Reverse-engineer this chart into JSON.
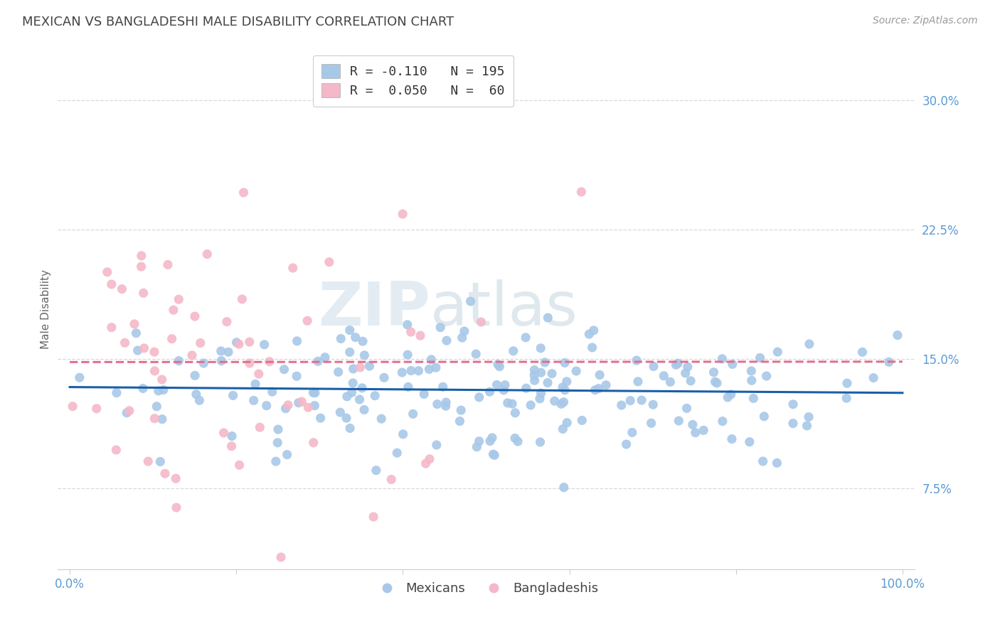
{
  "title": "MEXICAN VS BANGLADESHI MALE DISABILITY CORRELATION CHART",
  "source": "Source: ZipAtlas.com",
  "ylabel": "Male Disability",
  "ytick_labels": [
    "7.5%",
    "15.0%",
    "22.5%",
    "30.0%"
  ],
  "ytick_values": [
    0.075,
    0.15,
    0.225,
    0.3
  ],
  "ymin": 0.028,
  "ymax": 0.33,
  "xmin": -0.015,
  "xmax": 1.015,
  "watermark_top": "ZIP",
  "watermark_bot": "atlas",
  "scatter_blue_color": "#a8c8e8",
  "scatter_pink_color": "#f4b8c8",
  "line_blue_color": "#1a5fa8",
  "line_pink_color": "#e07090",
  "grid_color": "#d8d8d8",
  "background_color": "#ffffff",
  "title_color": "#444444",
  "tick_color": "#5b9bd5",
  "mexicans_R": -0.11,
  "mexicans_N": 195,
  "bangladeshis_R": 0.05,
  "bangladeshis_N": 60,
  "legend_R1": "-0.110",
  "legend_N1": "195",
  "legend_R2": "0.050",
  "legend_N2": "60"
}
